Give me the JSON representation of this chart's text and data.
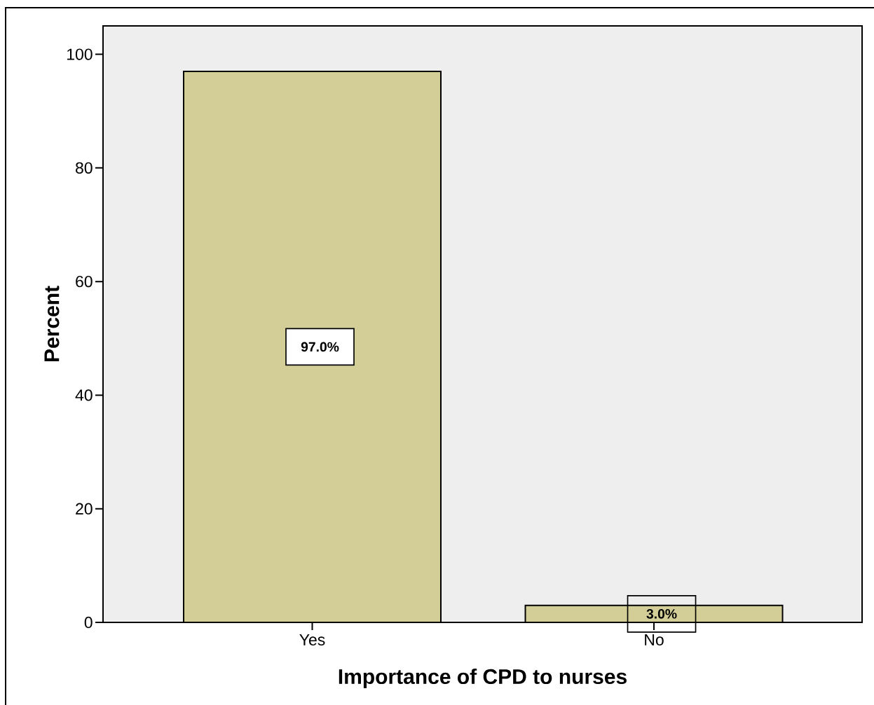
{
  "chart_data": {
    "type": "bar",
    "xlabel": "Importance of CPD to nurses",
    "ylabel": "Percent",
    "categories": [
      "Yes",
      "No"
    ],
    "values": [
      97,
      3
    ],
    "value_labels": [
      "97.0%",
      "3.0%"
    ],
    "color": "#d3ce97",
    "ylim": [
      0,
      105
    ],
    "yticks": [
      0,
      20,
      40,
      60,
      80,
      100
    ]
  }
}
